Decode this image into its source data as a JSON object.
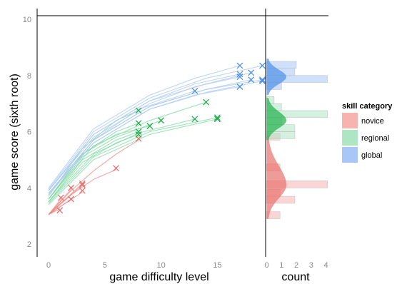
{
  "chart_data": {
    "type": "scatter",
    "xlabel": "game difficulty level",
    "ylabel": "game score (sixth root)",
    "hist_xlabel": "count",
    "xlim": [
      -1,
      19.5
    ],
    "ylim": [
      1.6,
      10.4
    ],
    "xticks": [
      "0",
      "5",
      "10",
      "15"
    ],
    "yticks": [
      "2",
      "4",
      "6",
      "8",
      "10"
    ],
    "hist_ticks": [
      "0",
      "1",
      "2",
      "3",
      "4"
    ],
    "hist_xlim": [
      0,
      4.1
    ],
    "legend": {
      "title": "skill category",
      "position": "right",
      "entries": [
        "novice",
        "regional",
        "global"
      ]
    },
    "series": [
      {
        "name": "novice",
        "color": "#f08a8a",
        "fill": "#f7b3b0",
        "marker_color": "#e8716e",
        "points": [
          [
            1,
            3.2
          ],
          [
            1.1,
            3.65
          ],
          [
            2,
            3.6
          ],
          [
            2,
            4.0
          ],
          [
            3,
            3.9
          ],
          [
            3,
            4.1
          ],
          [
            3,
            4.15
          ],
          [
            6,
            4.7
          ],
          [
            8,
            5.75
          ]
        ],
        "curves": [
          [
            [
              0,
              3.05
            ],
            [
              1,
              3.25
            ]
          ],
          [
            [
              0,
              3.05
            ],
            [
              1.1,
              3.6
            ]
          ],
          [
            [
              0,
              3.05
            ],
            [
              2,
              3.6
            ]
          ],
          [
            [
              0,
              3.05
            ],
            [
              2,
              3.95
            ]
          ],
          [
            [
              0,
              3.05
            ],
            [
              3,
              3.85
            ]
          ],
          [
            [
              0,
              3.05
            ],
            [
              3,
              4.1
            ]
          ],
          [
            [
              0,
              3.05
            ],
            [
              3,
              4.15
            ]
          ],
          [
            [
              0,
              3.05
            ],
            [
              2,
              3.75
            ],
            [
              4,
              4.3
            ],
            [
              6,
              4.65
            ]
          ],
          [
            [
              0,
              3.05
            ],
            [
              2,
              3.9
            ],
            [
              4,
              4.6
            ],
            [
              6,
              5.2
            ],
            [
              8,
              5.7
            ]
          ]
        ],
        "histogram": [
          {
            "bin": [
              2.9,
              3.15
            ],
            "count": 0.9
          },
          {
            "bin": [
              3.45,
              3.7
            ],
            "count": 1.9
          },
          {
            "bin": [
              3.7,
              3.95
            ],
            "count": 0.9
          },
          {
            "bin": [
              4.0,
              4.25
            ],
            "count": 4.1
          },
          {
            "bin": [
              4.6,
              4.85
            ],
            "count": 0.9
          },
          {
            "bin": [
              5.7,
              5.95
            ],
            "count": 0.9
          }
        ],
        "density_range": [
          2.9,
          5.85
        ],
        "density_mode": 4.1
      },
      {
        "name": "regional",
        "color": "#7dd8a0",
        "fill": "#aee6c3",
        "marker_color": "#1fb14b",
        "points": [
          [
            8,
            5.9
          ],
          [
            8,
            6.0
          ],
          [
            8,
            6.3
          ],
          [
            8,
            6.75
          ],
          [
            9,
            6.2
          ],
          [
            10,
            6.4
          ],
          [
            13,
            6.45
          ],
          [
            14,
            7.05
          ],
          [
            15,
            6.45
          ],
          [
            15,
            6.5
          ]
        ],
        "curves": [
          [
            [
              0,
              3.5
            ],
            [
              3,
              4.9
            ],
            [
              6,
              5.6
            ],
            [
              8,
              5.9
            ]
          ],
          [
            [
              0,
              3.5
            ],
            [
              3,
              5.0
            ],
            [
              6,
              5.7
            ],
            [
              8,
              6.0
            ]
          ],
          [
            [
              0,
              3.6
            ],
            [
              3,
              5.2
            ],
            [
              6,
              6.0
            ],
            [
              8,
              6.3
            ]
          ],
          [
            [
              0,
              3.7
            ],
            [
              3,
              5.4
            ],
            [
              6,
              6.4
            ],
            [
              8,
              6.75
            ]
          ],
          [
            [
              0,
              3.6
            ],
            [
              3,
              5.2
            ],
            [
              6,
              5.9
            ],
            [
              9,
              6.2
            ]
          ],
          [
            [
              0,
              3.6
            ],
            [
              3,
              5.1
            ],
            [
              6,
              5.8
            ],
            [
              10,
              6.4
            ]
          ],
          [
            [
              0,
              3.5
            ],
            [
              4,
              5.2
            ],
            [
              8,
              5.95
            ],
            [
              13,
              6.45
            ]
          ],
          [
            [
              0,
              3.6
            ],
            [
              4,
              5.5
            ],
            [
              9,
              6.4
            ],
            [
              14,
              7.05
            ]
          ],
          [
            [
              0,
              3.4
            ],
            [
              4,
              5.0
            ],
            [
              9,
              5.9
            ],
            [
              15,
              6.45
            ]
          ],
          [
            [
              0,
              3.45
            ],
            [
              4,
              5.1
            ],
            [
              9,
              6.0
            ],
            [
              15,
              6.5
            ]
          ]
        ],
        "histogram": [
          {
            "bin": [
              5.75,
              6.0
            ],
            "count": 1.9
          },
          {
            "bin": [
              6.0,
              6.25
            ],
            "count": 1.9
          },
          {
            "bin": [
              6.25,
              6.5
            ],
            "count": 1.0
          },
          {
            "bin": [
              6.5,
              6.75
            ],
            "count": 4.1
          },
          {
            "bin": [
              6.75,
              7.0
            ],
            "count": 1.0
          },
          {
            "bin": [
              7.0,
              7.25
            ],
            "count": 0.5
          }
        ],
        "density_range": [
          5.7,
          7.2
        ],
        "density_mode": 6.4
      },
      {
        "name": "global",
        "color": "#a9c8f2",
        "fill": "#a8c6f8",
        "marker_color": "#4f8fe6",
        "points": [
          [
            13,
            7.45
          ],
          [
            17,
            7.6
          ],
          [
            17,
            7.95
          ],
          [
            17,
            8.05
          ],
          [
            17,
            8.35
          ],
          [
            18,
            7.85
          ],
          [
            18,
            8.1
          ],
          [
            19,
            7.8
          ],
          [
            19,
            7.85
          ],
          [
            19,
            8.35
          ]
        ],
        "curves": [
          [
            [
              0,
              3.8
            ],
            [
              4,
              5.7
            ],
            [
              8,
              6.8
            ],
            [
              13,
              7.45
            ]
          ],
          [
            [
              0,
              3.8
            ],
            [
              4,
              5.6
            ],
            [
              9,
              6.8
            ],
            [
              13,
              7.3
            ],
            [
              17,
              7.6
            ]
          ],
          [
            [
              0,
              3.9
            ],
            [
              4,
              5.8
            ],
            [
              9,
              7.0
            ],
            [
              13,
              7.6
            ],
            [
              17,
              7.95
            ]
          ],
          [
            [
              0,
              3.9
            ],
            [
              4,
              5.9
            ],
            [
              9,
              7.1
            ],
            [
              13,
              7.7
            ],
            [
              17,
              8.05
            ]
          ],
          [
            [
              0,
              4.0
            ],
            [
              4,
              6.1
            ],
            [
              9,
              7.3
            ],
            [
              13,
              7.9
            ],
            [
              17,
              8.35
            ]
          ],
          [
            [
              0,
              3.8
            ],
            [
              4,
              5.7
            ],
            [
              9,
              6.9
            ],
            [
              14,
              7.5
            ],
            [
              18,
              7.85
            ]
          ],
          [
            [
              0,
              3.9
            ],
            [
              4,
              5.9
            ],
            [
              9,
              7.1
            ],
            [
              14,
              7.7
            ],
            [
              18,
              8.1
            ]
          ],
          [
            [
              0,
              3.75
            ],
            [
              4,
              5.6
            ],
            [
              9,
              6.8
            ],
            [
              14,
              7.4
            ],
            [
              19,
              7.8
            ]
          ],
          [
            [
              0,
              3.8
            ],
            [
              4,
              5.7
            ],
            [
              9,
              6.9
            ],
            [
              14,
              7.5
            ],
            [
              19,
              7.85
            ]
          ],
          [
            [
              0,
              3.95
            ],
            [
              4,
              6.0
            ],
            [
              9,
              7.2
            ],
            [
              14,
              7.9
            ],
            [
              19,
              8.35
            ]
          ]
        ],
        "histogram": [
          {
            "bin": [
              7.5,
              7.75
            ],
            "count": 1.0
          },
          {
            "bin": [
              7.75,
              8.0
            ],
            "count": 4.1
          },
          {
            "bin": [
              8.0,
              8.25
            ],
            "count": 1.9
          },
          {
            "bin": [
              8.25,
              8.5
            ],
            "count": 2.0
          }
        ],
        "density_range": [
          7.3,
          8.6
        ],
        "density_mode": 7.95
      }
    ]
  }
}
